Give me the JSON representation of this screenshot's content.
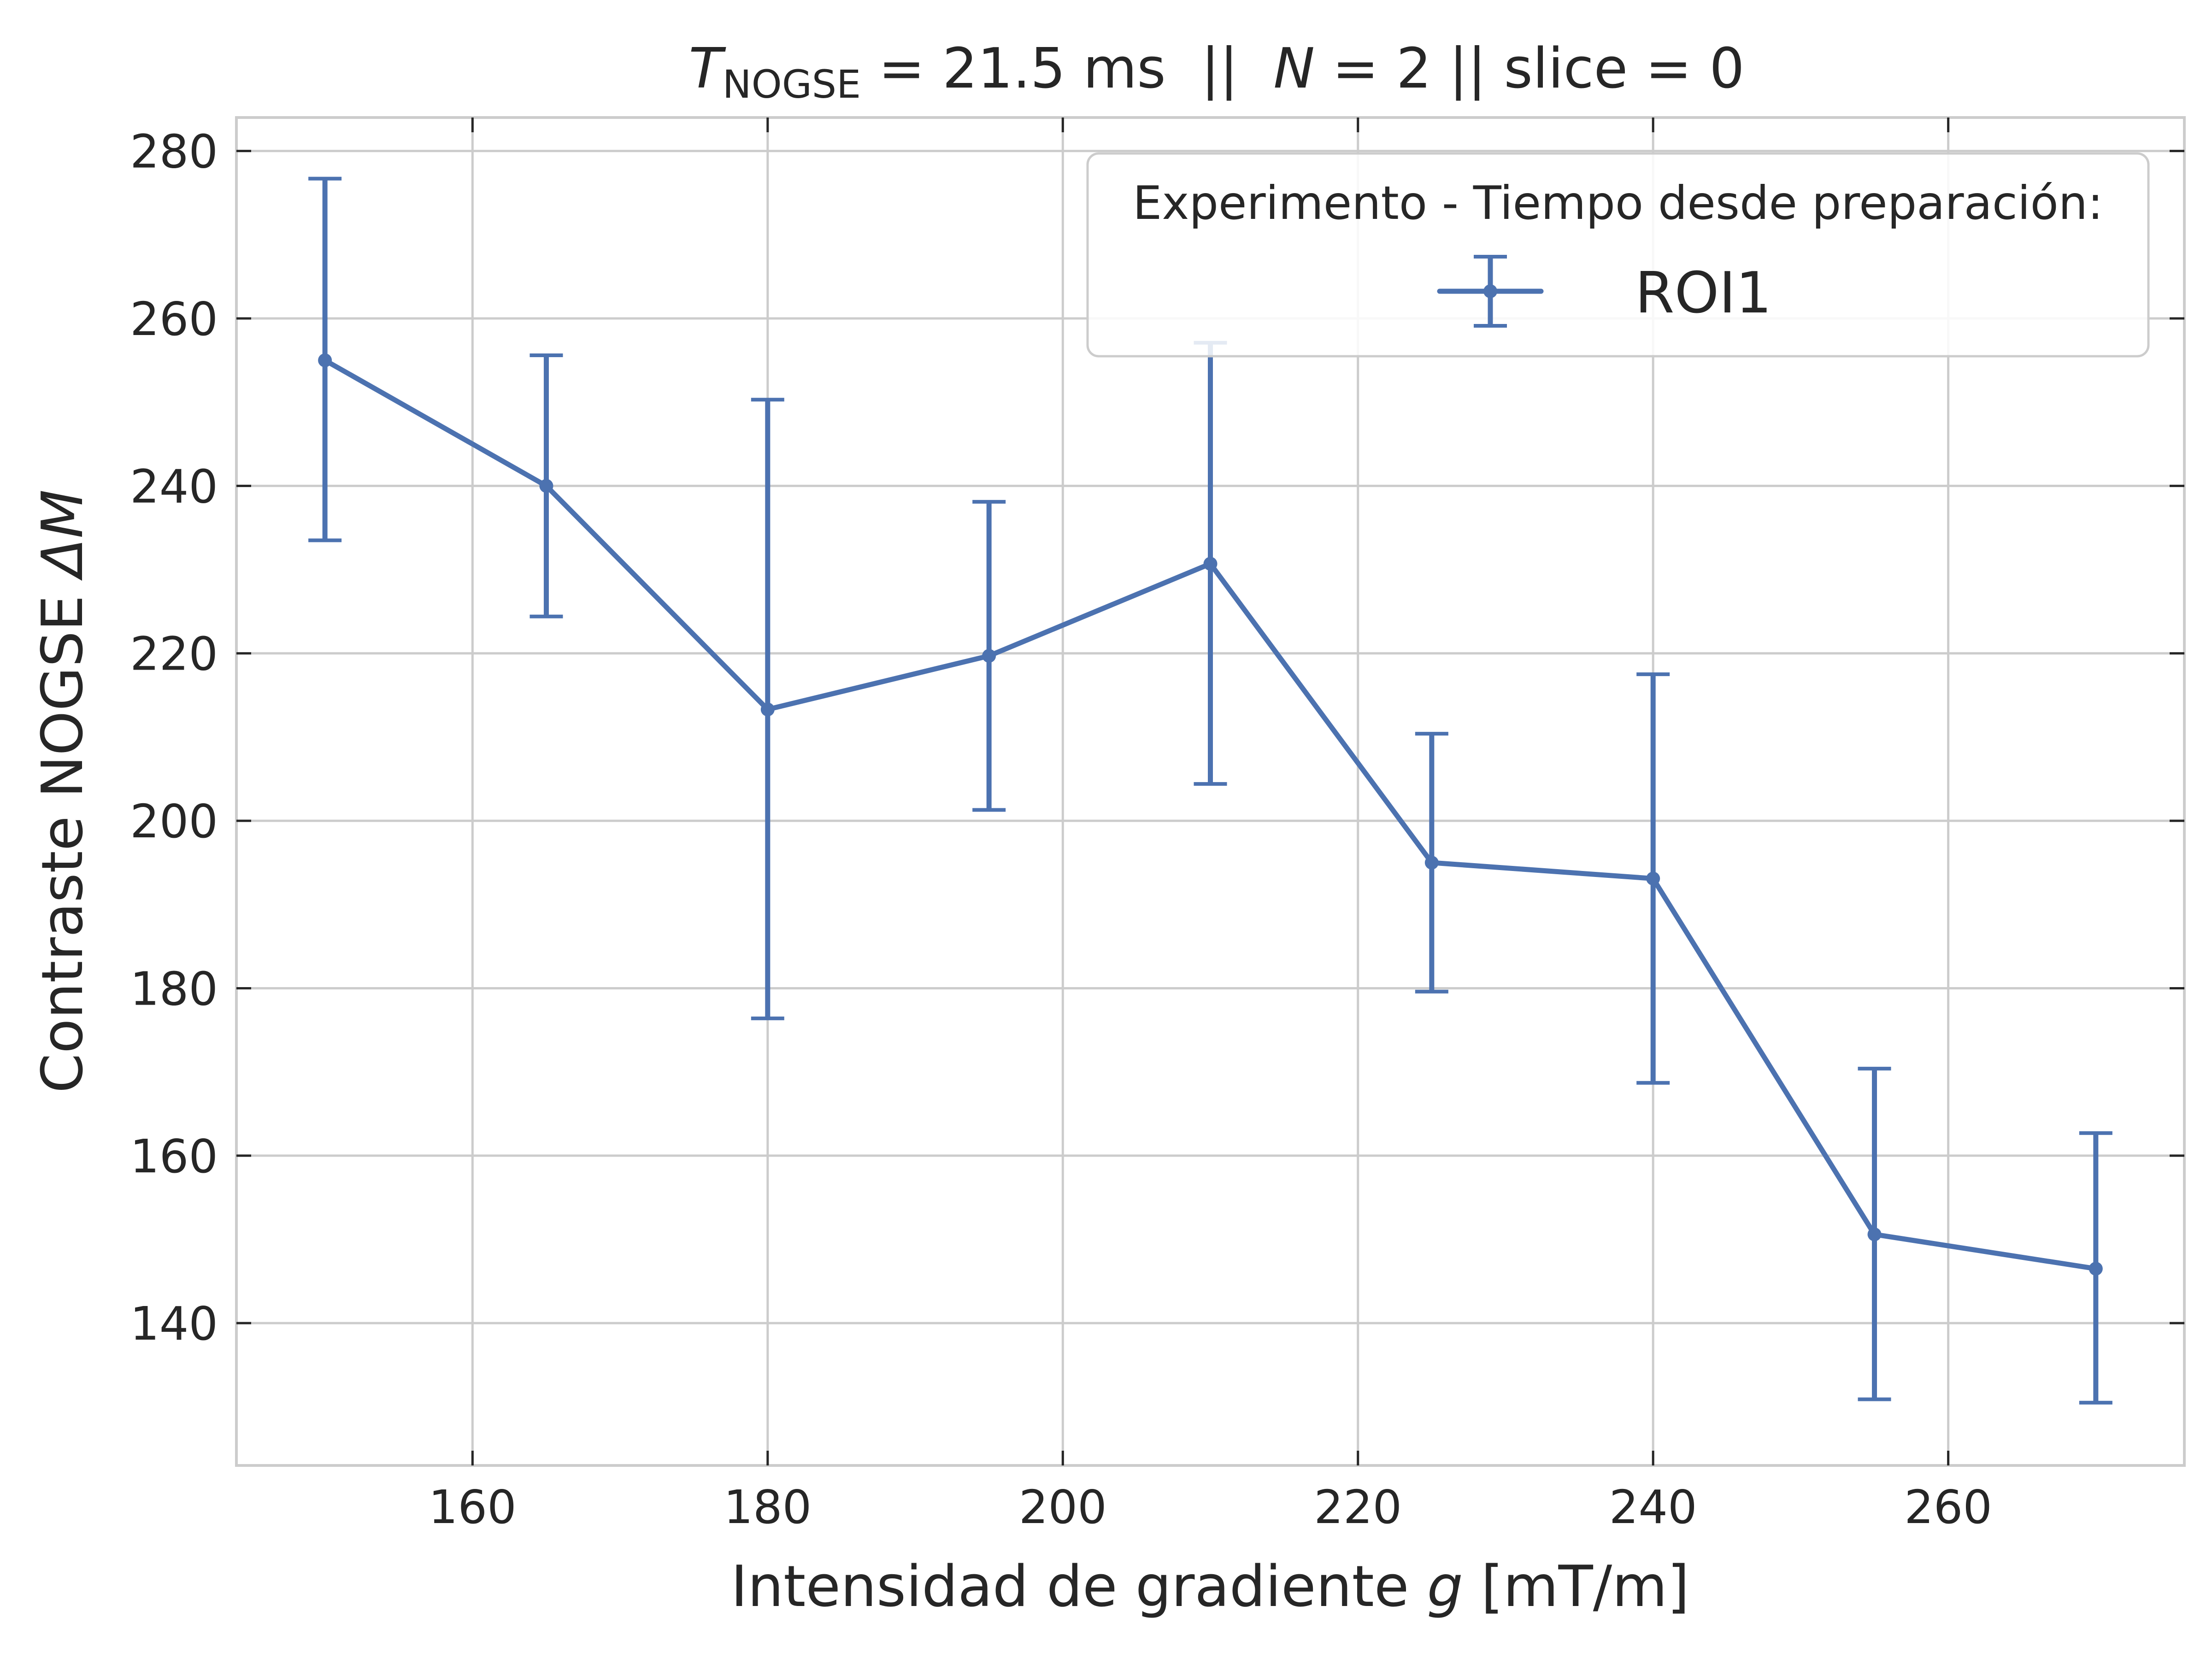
{
  "chart_data": {
    "type": "line",
    "title": {
      "t_symbol": "T",
      "t_subscript": "NOGSE",
      "t_rest": " = 21.5 ms  ||  ",
      "n_symbol": "N",
      "n_rest": " = 2 || slice = 0"
    },
    "xlabel": {
      "text": "Intensidad de gradiente ",
      "var": "g",
      "units": " [mT/m]"
    },
    "ylabel": {
      "text": "Contraste NOGSE ",
      "var": "ΔM"
    },
    "xlim": [
      144,
      276
    ],
    "ylim": [
      123,
      284
    ],
    "xticks": [
      160,
      180,
      200,
      220,
      240,
      260
    ],
    "yticks": [
      140,
      160,
      180,
      200,
      220,
      240,
      260,
      280
    ],
    "grid": true,
    "legend": {
      "placement": "top-right",
      "title": "Experimento - Tiempo desde preparación:"
    },
    "series": [
      {
        "name": "ROI1",
        "color": "#4c72b0",
        "x": [
          150,
          165,
          180,
          195,
          210,
          225,
          240,
          255,
          270
        ],
        "y": [
          255.0,
          240.0,
          213.3,
          219.7,
          230.7,
          195.0,
          193.1,
          150.6,
          146.5
        ],
        "yerr_low": [
          233.5,
          224.4,
          176.4,
          201.3,
          204.4,
          179.6,
          168.7,
          130.9,
          130.5
        ],
        "yerr_high": [
          276.7,
          255.6,
          250.3,
          238.1,
          257.1,
          210.4,
          217.5,
          170.4,
          162.7
        ]
      }
    ]
  }
}
